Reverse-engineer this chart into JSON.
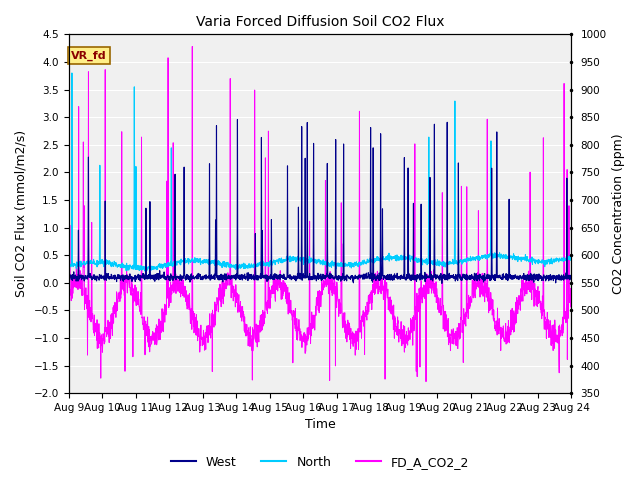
{
  "title": "Varia Forced Diffusion Soil CO2 Flux",
  "xlabel": "Time",
  "ylabel_left": "Soil CO2 Flux (mmol/m2/s)",
  "ylabel_right": "CO2 Concentration (ppm)",
  "ylim_left": [
    -2.0,
    4.5
  ],
  "ylim_right": [
    350,
    1000
  ],
  "annotation_text": "VR_fd",
  "annotation_color": "#8B0000",
  "annotation_bg": "#FFEE88",
  "annotation_edge": "#996600",
  "x_tick_labels": [
    "Aug 9",
    "Aug 10",
    "Aug 11",
    "Aug 12",
    "Aug 13",
    "Aug 14",
    "Aug 15",
    "Aug 16",
    "Aug 17",
    "Aug 18",
    "Aug 19",
    "Aug 20",
    "Aug 21",
    "Aug 22",
    "Aug 23",
    "Aug 24"
  ],
  "legend_entries": [
    "West",
    "North",
    "FD_A_CO2_2"
  ],
  "west_color": "#00008B",
  "north_color": "#00CCFF",
  "co2_color": "#FF00FF",
  "bg_color": "#F0F0F0",
  "grid_color": "#FFFFFF",
  "n_days": 15,
  "pts_per_day": 144,
  "title_fontsize": 10,
  "axis_fontsize": 9,
  "tick_fontsize": 7.5
}
